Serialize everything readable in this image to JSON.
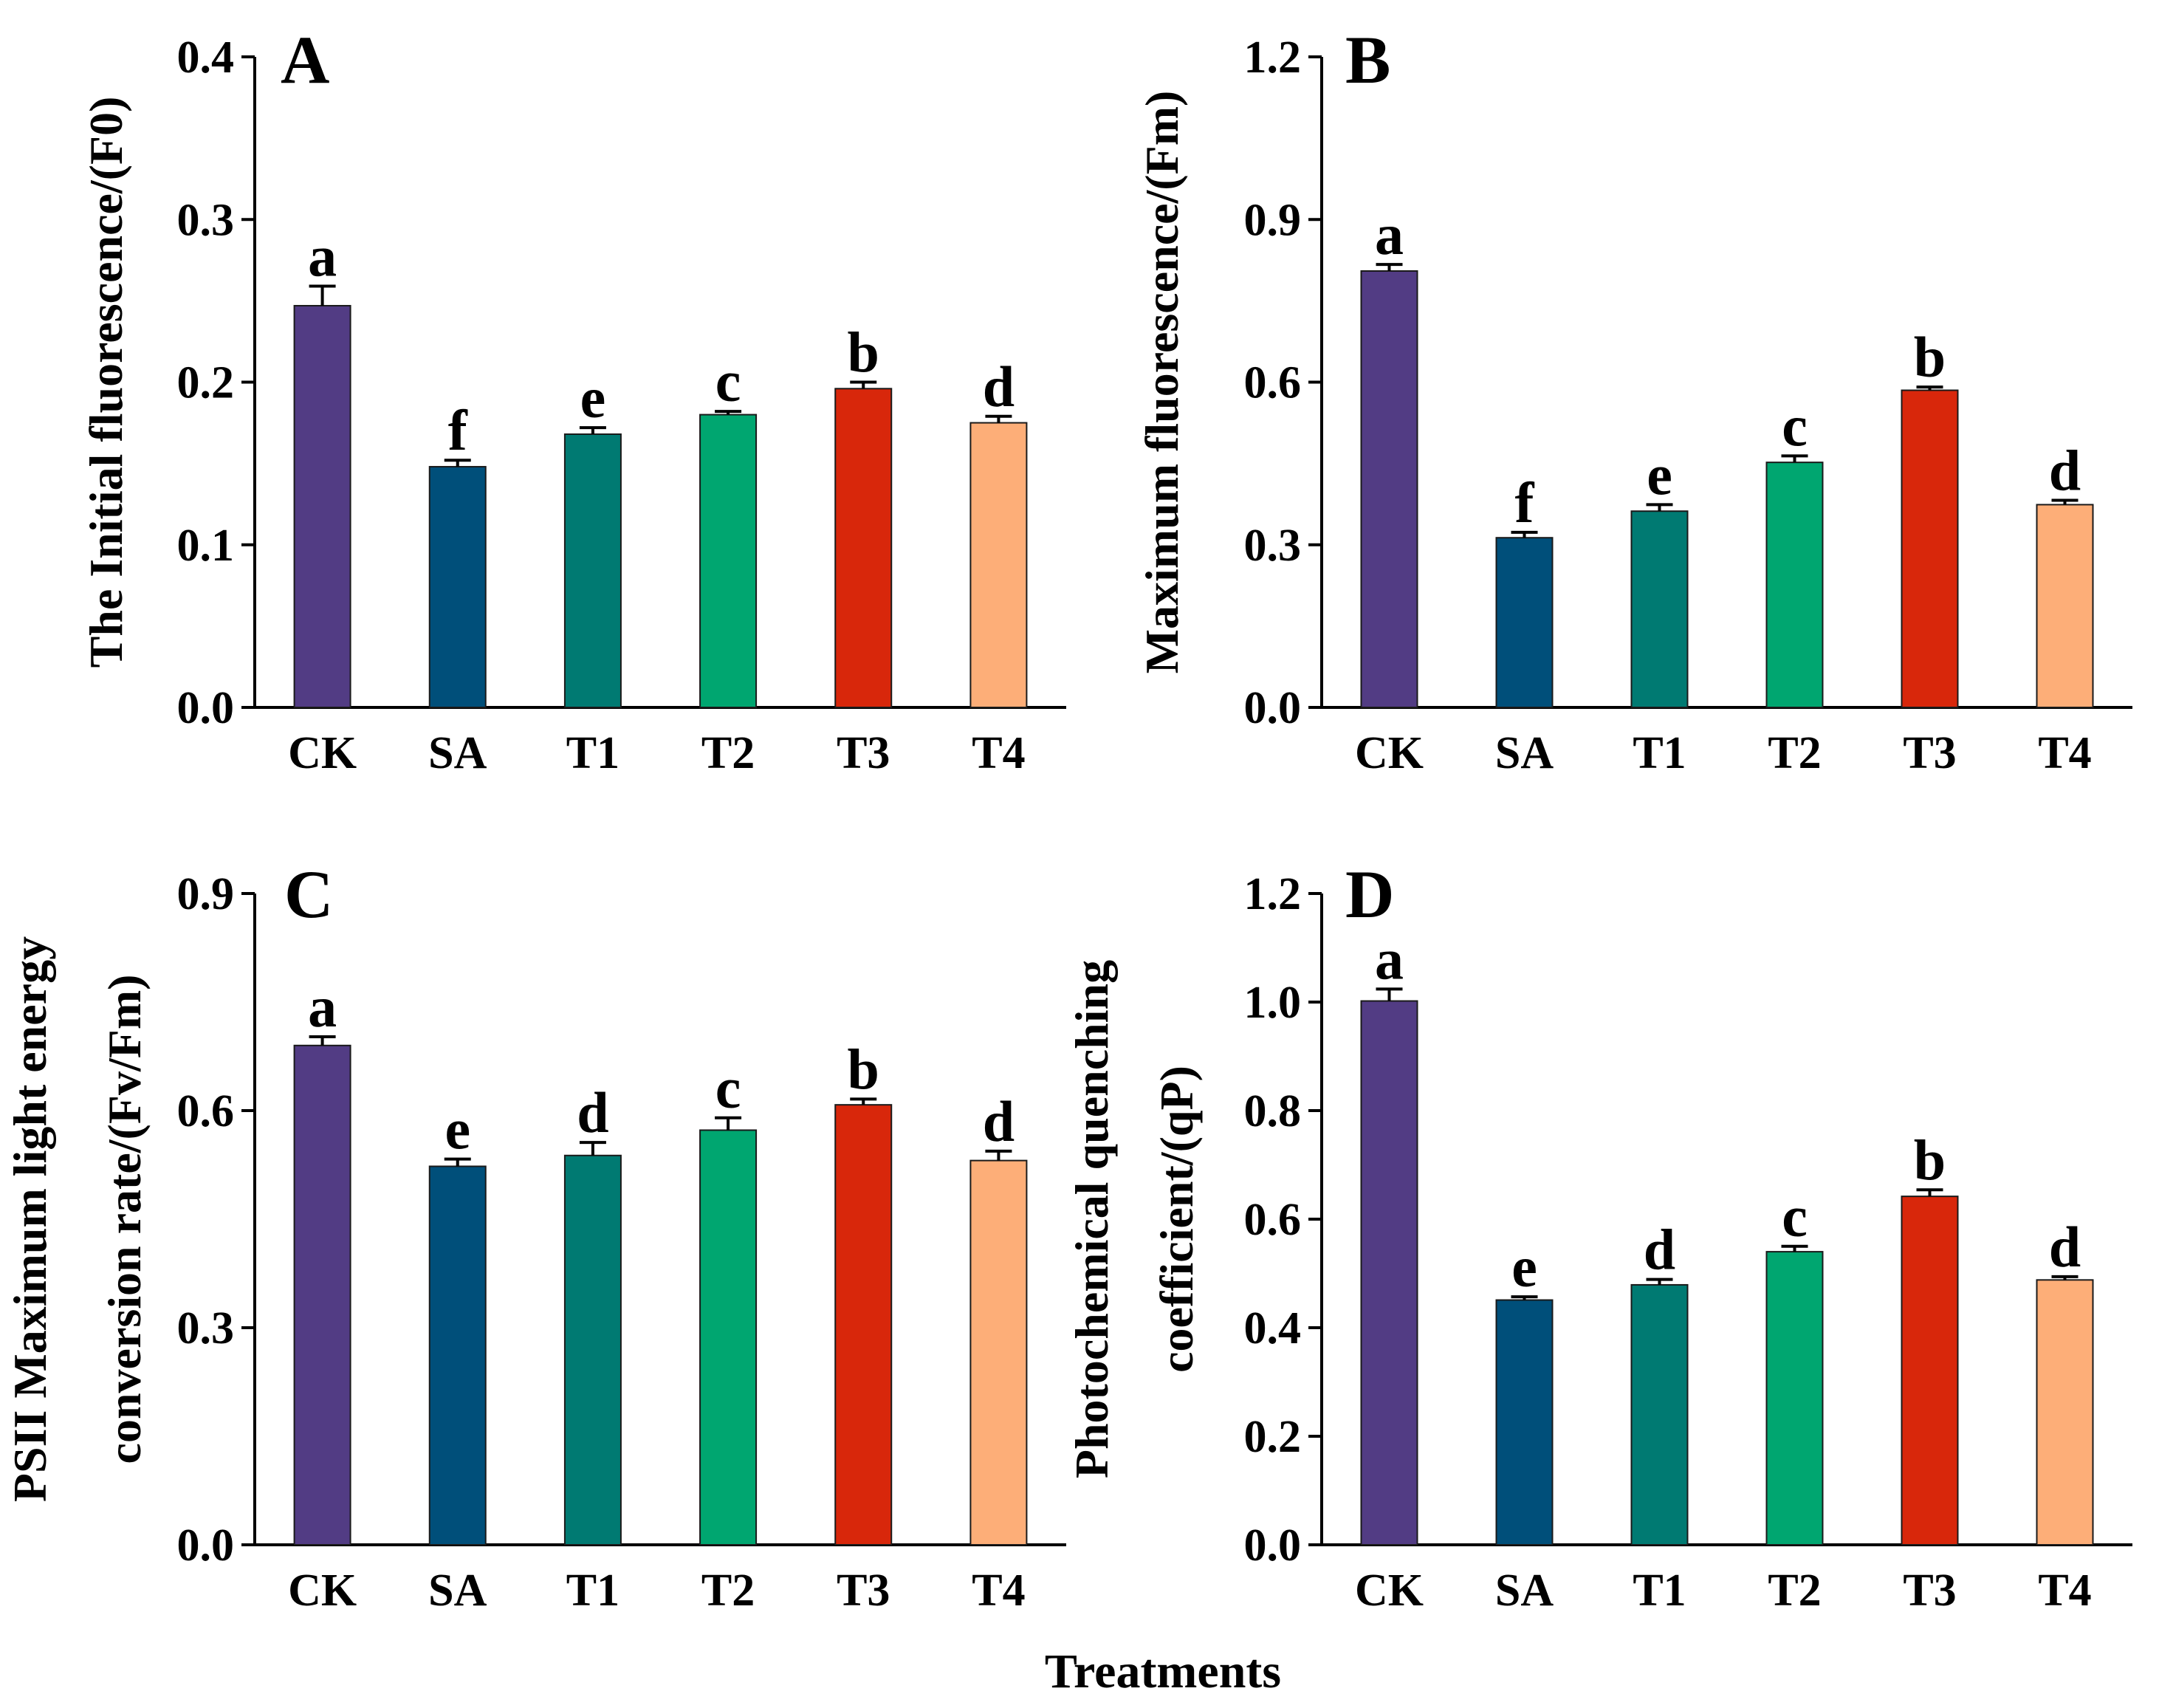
{
  "colors": {
    "CK": "#523C84",
    "SA": "#004F7A",
    "T1": "#007A72",
    "T2": "#00A670",
    "T3": "#D8270B",
    "T4": "#FDAE78"
  },
  "xlabel": "Treatments",
  "chart_data": [
    {
      "type": "bar",
      "panel": "A",
      "categories": [
        "CK",
        "SA",
        "T1",
        "T2",
        "T3",
        "T4"
      ],
      "values": [
        0.247,
        0.148,
        0.168,
        0.18,
        0.196,
        0.175
      ],
      "errors": [
        0.012,
        0.004,
        0.004,
        0.002,
        0.004,
        0.004
      ],
      "significance": [
        "a",
        "f",
        "e",
        "c",
        "b",
        "d"
      ],
      "ylabel": "The Initial fluorescence/(F0)",
      "ylim": [
        0,
        0.4
      ],
      "yticks": [
        0.0,
        0.1,
        0.2,
        0.3,
        0.4
      ],
      "ytick_labels": [
        "0.0",
        "0.1",
        "0.2",
        "0.3",
        "0.4"
      ]
    },
    {
      "type": "bar",
      "panel": "B",
      "categories": [
        "CK",
        "SA",
        "T1",
        "T2",
        "T3",
        "T4"
      ],
      "values": [
        0.805,
        0.313,
        0.362,
        0.452,
        0.585,
        0.374
      ],
      "errors": [
        0.012,
        0.01,
        0.012,
        0.012,
        0.006,
        0.008
      ],
      "significance": [
        "a",
        "f",
        "e",
        "c",
        "b",
        "d"
      ],
      "ylabel": "Maximum fluorescence/(Fm)",
      "ylim": [
        0,
        1.2
      ],
      "yticks": [
        0.0,
        0.3,
        0.6,
        0.9,
        1.2
      ],
      "ytick_labels": [
        "0.0",
        "0.3",
        "0.6",
        "0.9",
        "1.2"
      ]
    },
    {
      "type": "bar",
      "panel": "C",
      "categories": [
        "CK",
        "SA",
        "T1",
        "T2",
        "T3",
        "T4"
      ],
      "values": [
        0.69,
        0.523,
        0.538,
        0.573,
        0.608,
        0.531
      ],
      "errors": [
        0.012,
        0.01,
        0.018,
        0.017,
        0.008,
        0.013
      ],
      "significance": [
        "a",
        "e",
        "d",
        "c",
        "b",
        "d"
      ],
      "ylabel_lines": [
        "PSII Maximum light energy",
        "conversion rate/(Fv/Fm)"
      ],
      "ylim": [
        0,
        0.9
      ],
      "yticks": [
        0.0,
        0.3,
        0.6,
        0.9
      ],
      "ytick_labels": [
        "0.0",
        "0.3",
        "0.6",
        "0.9"
      ]
    },
    {
      "type": "bar",
      "panel": "D",
      "categories": [
        "CK",
        "SA",
        "T1",
        "T2",
        "T3",
        "T4"
      ],
      "values": [
        1.002,
        0.451,
        0.479,
        0.54,
        0.642,
        0.488
      ],
      "errors": [
        0.022,
        0.006,
        0.01,
        0.01,
        0.012,
        0.006
      ],
      "significance": [
        "a",
        "e",
        "d",
        "c",
        "b",
        "d"
      ],
      "ylabel_lines": [
        "Photochemical quenching",
        "coefficient/(qP)"
      ],
      "ylim": [
        0,
        1.2
      ],
      "yticks": [
        0.0,
        0.2,
        0.4,
        0.6,
        0.8,
        1.0,
        1.2
      ],
      "ytick_labels": [
        "0.0",
        "0.2",
        "0.4",
        "0.6",
        "0.8",
        "1.0",
        "1.2"
      ]
    }
  ]
}
